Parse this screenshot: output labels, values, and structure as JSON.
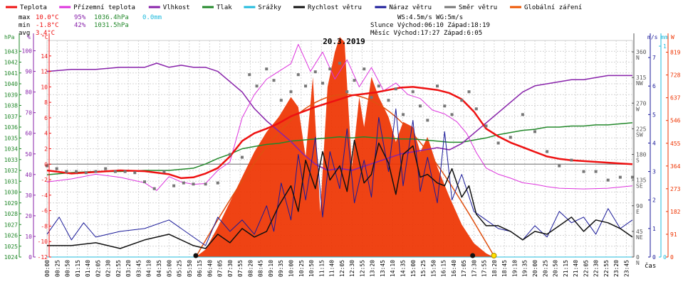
{
  "legend": [
    {
      "label": "Teplota",
      "color": "#ee1111"
    },
    {
      "label": "Přízemní teplota",
      "color": "#dd33dd"
    },
    {
      "label": "Vlhkost",
      "color": "#8822aa"
    },
    {
      "label": "Tlak",
      "color": "#22882a"
    },
    {
      "label": "Srážky",
      "color": "#22bbdd"
    },
    {
      "label": "Rychlost větru",
      "color": "#111111"
    },
    {
      "label": "Náraz větru",
      "color": "#1a1a99"
    },
    {
      "label": "Směr větru",
      "color": "#777777"
    },
    {
      "label": "Globální záření",
      "color": "#ee5500"
    }
  ],
  "stats": {
    "max": {
      "label": "max",
      "temp": "10.0°C",
      "hum": "95%",
      "press": "1036.4hPa",
      "rain": "0.0mm"
    },
    "min": {
      "label": "min",
      "temp": "-1.8°C",
      "hum": "42%",
      "press": "1031.5hPa"
    },
    "avg": {
      "label": "avg",
      "temp": "3.4°C"
    },
    "wind": "WS:4.5m/s     WG:5m/s",
    "sun": "Slunce Východ:06:10  Západ:18:19",
    "moon": "Měsíc Východ:17:27  Západ:6:05"
  },
  "colors": {
    "temp": "#ee1111",
    "ground": "#dd33dd",
    "hum": "#8822aa",
    "press": "#22882a",
    "rain": "#22bbdd",
    "ws": "#111111",
    "wg": "#1a1a99",
    "wd": "#777777",
    "rad": "#ee3300"
  },
  "chart_data": {
    "type": "line",
    "title": "20.3.2019",
    "xlabel": "čas",
    "x_ticks": [
      "00:00",
      "00:25",
      "00:50",
      "01:15",
      "01:40",
      "02:05",
      "02:30",
      "02:55",
      "03:20",
      "03:45",
      "04:10",
      "04:35",
      "05:00",
      "05:25",
      "05:50",
      "06:15",
      "06:40",
      "07:05",
      "07:30",
      "07:55",
      "08:20",
      "08:45",
      "09:10",
      "09:35",
      "10:00",
      "10:25",
      "10:50",
      "11:15",
      "11:40",
      "12:05",
      "12:30",
      "12:55",
      "13:20",
      "13:45",
      "14:10",
      "14:35",
      "15:00",
      "15:25",
      "15:50",
      "16:15",
      "16:40",
      "17:05",
      "17:30",
      "17:55",
      "18:20",
      "18:45",
      "19:10",
      "19:35",
      "20:00",
      "20:25",
      "20:50",
      "21:15",
      "21:40",
      "22:05",
      "22:30",
      "22:55",
      "23:20",
      "23:45"
    ],
    "x_range_hours": [
      0,
      24
    ],
    "axes": {
      "hPa": {
        "label": "hPa",
        "range": [
          1024,
          1044
        ],
        "ticks": [
          1024,
          1025,
          1026,
          1027,
          1028,
          1029,
          1030,
          1031,
          1032,
          1033,
          1034,
          1035,
          1036,
          1037,
          1038,
          1039,
          1040,
          1041,
          1042,
          1043
        ]
      },
      "percent": {
        "label": "%",
        "range": [
          0,
          105
        ],
        "ticks": [
          0,
          10,
          20,
          30,
          40,
          50,
          60,
          70,
          80,
          90,
          100
        ]
      },
      "celsius": {
        "label": "°C",
        "range": [
          -12,
          16
        ],
        "ticks": [
          -12,
          -10,
          -8,
          -6,
          -4,
          -2,
          0,
          2,
          4,
          6,
          8,
          10,
          12,
          14
        ]
      },
      "wind_direction": {
        "range": [
          0,
          380
        ],
        "ticks": [
          0,
          45,
          90,
          135,
          180,
          225,
          270,
          315,
          360
        ],
        "labels": [
          "N",
          "NE",
          "E",
          "SE",
          "S",
          "SW",
          "W",
          "NW",
          "N"
        ]
      },
      "ms": {
        "label": "m/s",
        "range": [
          0,
          7.6
        ],
        "ticks": [
          0,
          1,
          2,
          3,
          4,
          5,
          6,
          7
        ]
      },
      "mm": {
        "label": "mm",
        "range": [
          0,
          1
        ],
        "ticks": [
          0,
          1
        ]
      },
      "W": {
        "label": "W",
        "range": [
          0,
          866
        ],
        "ticks": [
          0,
          91,
          182,
          273,
          364,
          455,
          546,
          637,
          728,
          819
        ]
      }
    },
    "series": [
      {
        "name": "Teplota",
        "unit": "°C",
        "x": [
          0,
          1,
          2,
          3,
          4,
          5,
          5.5,
          6,
          6.5,
          7,
          7.5,
          8,
          8.5,
          9,
          9.5,
          10,
          10.5,
          11,
          11.5,
          12,
          12.5,
          13,
          13.5,
          14,
          14.5,
          15,
          15.5,
          16,
          16.5,
          17,
          17.5,
          18,
          18.5,
          19,
          19.5,
          20,
          20.5,
          21,
          21.5,
          22,
          22.5,
          23,
          23.5,
          24
        ],
        "y": [
          -0.8,
          -1.2,
          -1.0,
          -0.8,
          -0.9,
          -1.3,
          -1.8,
          -1.7,
          -1.2,
          -0.5,
          1.0,
          3.0,
          4.0,
          4.6,
          5.3,
          6.2,
          6.8,
          7.4,
          7.9,
          8.4,
          8.9,
          9.1,
          9.3,
          9.6,
          9.9,
          10.0,
          9.8,
          9.6,
          9.2,
          8.4,
          6.8,
          4.6,
          3.6,
          2.8,
          2.2,
          1.6,
          1.0,
          0.7,
          0.5,
          0.4,
          0.3,
          0.2,
          0.1,
          0.0
        ]
      },
      {
        "name": "Přízemní teplota",
        "unit": "°C",
        "x": [
          0,
          1,
          2,
          3,
          4,
          4.5,
          5,
          5.5,
          6,
          6.5,
          7,
          7.5,
          8,
          8.5,
          9,
          9.5,
          10,
          10.3,
          10.8,
          11.3,
          11.8,
          12.3,
          12.8,
          13.3,
          13.8,
          14.3,
          14.8,
          15.3,
          15.8,
          16.3,
          16.8,
          17.2,
          17.6,
          18,
          18.5,
          19,
          19.5,
          20,
          20.5,
          21,
          22,
          23,
          24
        ],
        "y": [
          -2.3,
          -1.9,
          -1.3,
          -1.7,
          -2.4,
          -3.4,
          -1.6,
          -2.3,
          -2.6,
          -2.5,
          -0.8,
          0.3,
          6.0,
          9.0,
          11.0,
          12.0,
          13.0,
          15.5,
          12.0,
          14.5,
          11.0,
          13.5,
          10.0,
          12.5,
          9.5,
          10.5,
          9.0,
          8.5,
          7.0,
          6.5,
          5.5,
          4.0,
          1.5,
          -0.5,
          -1.3,
          -1.8,
          -2.4,
          -2.6,
          -2.9,
          -3.1,
          -3.2,
          -3.1,
          -2.8
        ]
      },
      {
        "name": "Vlhkost",
        "unit": "%",
        "x": [
          0,
          1,
          2,
          3,
          4,
          4.5,
          5,
          5.5,
          6,
          6.5,
          7,
          7.5,
          8,
          8.5,
          9,
          9.5,
          10,
          10.5,
          11,
          11.5,
          12,
          12.5,
          13,
          13.5,
          14,
          14.5,
          15,
          15.5,
          16,
          16.5,
          17,
          17.5,
          18,
          18.5,
          19,
          19.5,
          20,
          20.5,
          21,
          21.5,
          22,
          22.5,
          23,
          23.5,
          24
        ],
        "y": [
          90,
          91,
          91,
          92,
          92,
          94,
          92,
          93,
          92,
          92,
          90,
          85,
          80,
          72,
          66,
          61,
          56,
          50,
          45,
          42,
          43,
          42,
          44,
          46,
          48,
          50,
          51,
          52,
          53,
          52,
          55,
          60,
          65,
          70,
          75,
          80,
          83,
          84,
          85,
          86,
          86,
          87,
          88,
          88,
          88
        ]
      },
      {
        "name": "Tlak",
        "unit": "hPa",
        "x": [
          0,
          1,
          2,
          3,
          4,
          5,
          6,
          6.5,
          7,
          7.5,
          8,
          8.5,
          9,
          9.5,
          10,
          10.5,
          11,
          11.5,
          12,
          12.5,
          13,
          13.5,
          14,
          14.5,
          15,
          15.5,
          16,
          16.5,
          17,
          17.5,
          18,
          18.5,
          19,
          19.5,
          20,
          20.5,
          21,
          21.5,
          22,
          22.5,
          23,
          23.5,
          24
        ],
        "y": [
          1031.6,
          1031.8,
          1031.9,
          1031.9,
          1032.0,
          1032.0,
          1032.2,
          1032.6,
          1033.1,
          1033.5,
          1034.0,
          1034.2,
          1034.4,
          1034.5,
          1034.7,
          1034.8,
          1034.9,
          1035.0,
          1035.1,
          1035.0,
          1035.1,
          1035.0,
          1035.0,
          1034.9,
          1034.9,
          1034.8,
          1034.7,
          1034.6,
          1034.6,
          1034.8,
          1035.0,
          1035.3,
          1035.5,
          1035.7,
          1035.8,
          1036.0,
          1036.0,
          1036.1,
          1036.1,
          1036.2,
          1036.2,
          1036.3,
          1036.4
        ]
      },
      {
        "name": "Srážky",
        "unit": "mm",
        "x": [
          0,
          24
        ],
        "y": [
          0,
          0
        ]
      },
      {
        "name": "Rychlost větru",
        "unit": "m/s",
        "x": [
          0,
          1,
          2,
          3,
          4,
          5,
          6,
          6.5,
          7,
          7.5,
          8,
          8.5,
          9,
          9.5,
          10,
          10.3,
          10.6,
          11,
          11.3,
          11.6,
          12,
          12.3,
          12.6,
          13,
          13.3,
          13.6,
          14,
          14.3,
          14.6,
          15,
          15.3,
          15.6,
          16,
          16.3,
          16.6,
          17,
          17.3,
          17.6,
          18,
          18.5,
          19,
          19.5,
          20,
          20.5,
          21,
          21.5,
          22,
          22.5,
          23,
          23.5,
          24
        ],
        "y": [
          0.4,
          0.4,
          0.5,
          0.3,
          0.6,
          0.8,
          0.4,
          0.3,
          0.8,
          0.5,
          1.0,
          0.7,
          0.9,
          1.8,
          2.5,
          1.6,
          3.4,
          2.4,
          3.7,
          2.7,
          3.2,
          2.3,
          4.1,
          2.6,
          2.9,
          4.0,
          3.3,
          2.2,
          3.6,
          3.9,
          2.8,
          2.9,
          2.6,
          2.5,
          3.1,
          2.1,
          2.5,
          1.5,
          1.1,
          1.1,
          0.9,
          0.6,
          0.9,
          0.8,
          1.1,
          1.4,
          0.9,
          1.3,
          1.2,
          1.0,
          0.7
        ]
      },
      {
        "name": "Náraz větru",
        "unit": "m/s",
        "x": [
          0,
          0.5,
          1,
          1.5,
          2,
          3,
          4,
          5,
          6,
          6.5,
          7,
          7.5,
          8,
          8.5,
          9,
          9.3,
          9.6,
          10,
          10.3,
          10.6,
          11,
          11.3,
          11.6,
          12,
          12.3,
          12.6,
          13,
          13.3,
          13.6,
          14,
          14.3,
          14.6,
          15,
          15.3,
          15.6,
          16,
          16.3,
          16.6,
          17,
          17.5,
          18,
          18.5,
          19,
          19.5,
          20,
          20.5,
          21,
          21.5,
          22,
          22.5,
          23,
          23.5,
          24
        ],
        "y": [
          0.8,
          1.4,
          0.6,
          1.2,
          0.7,
          0.9,
          1.0,
          1.3,
          0.7,
          0.4,
          1.4,
          0.9,
          1.3,
          0.8,
          1.8,
          0.9,
          2.6,
          1.3,
          3.6,
          2.0,
          4.2,
          1.4,
          3.7,
          2.4,
          4.5,
          1.9,
          3.4,
          2.1,
          4.9,
          3.0,
          5.2,
          2.5,
          4.8,
          2.3,
          3.5,
          1.9,
          4.4,
          2.0,
          2.9,
          1.6,
          1.3,
          1.0,
          0.9,
          0.6,
          1.1,
          0.7,
          1.6,
          1.2,
          1.4,
          0.8,
          1.7,
          1.0,
          1.3
        ]
      },
      {
        "name": "Směr větru",
        "unit": "°",
        "x": [
          0,
          0.4,
          0.8,
          1.2,
          1.6,
          2,
          2.4,
          2.8,
          3.2,
          3.6,
          4,
          4.4,
          4.8,
          5.2,
          5.6,
          6,
          6.5,
          7,
          7.5,
          8,
          8.3,
          8.6,
          9,
          9.3,
          9.6,
          10,
          10.3,
          10.6,
          11,
          11.3,
          11.6,
          12,
          12.3,
          12.6,
          13,
          13.3,
          13.6,
          14,
          14.3,
          14.6,
          15,
          15.3,
          15.6,
          16,
          16.3,
          16.6,
          17,
          17.3,
          17.6,
          18,
          18.5,
          19,
          19.5,
          20,
          20.5,
          21,
          21.5,
          22,
          22.5,
          23,
          23.5,
          24
        ],
        "y": [
          160,
          155,
          150,
          150,
          148,
          150,
          155,
          150,
          150,
          148,
          132,
          120,
          150,
          125,
          130,
          128,
          128,
          130,
          180,
          175,
          320,
          300,
          330,
          310,
          275,
          290,
          320,
          300,
          325,
          305,
          330,
          340,
          290,
          310,
          330,
          280,
          300,
          275,
          295,
          250,
          290,
          265,
          240,
          300,
          265,
          250,
          275,
          290,
          260,
          230,
          200,
          210,
          250,
          220,
          185,
          160,
          170,
          150,
          150,
          135,
          140,
          140
        ]
      },
      {
        "name": "Globální záření",
        "unit": "W",
        "x": [
          0,
          6.1,
          6.5,
          7,
          7.5,
          8,
          8.5,
          9,
          9.5,
          10,
          10.3,
          10.6,
          10.9,
          11.2,
          11.5,
          11.8,
          12,
          12.2,
          12.5,
          12.8,
          13,
          13.3,
          13.6,
          14,
          14.3,
          14.6,
          15,
          15.3,
          15.6,
          16,
          16.5,
          17,
          17.5,
          18,
          18.3,
          24
        ],
        "y": [
          0,
          0,
          30,
          120,
          220,
          320,
          420,
          500,
          560,
          640,
          600,
          400,
          720,
          180,
          680,
          820,
          880,
          860,
          360,
          640,
          520,
          720,
          640,
          560,
          460,
          540,
          520,
          420,
          480,
          360,
          240,
          130,
          55,
          15,
          0,
          0
        ]
      }
    ]
  }
}
